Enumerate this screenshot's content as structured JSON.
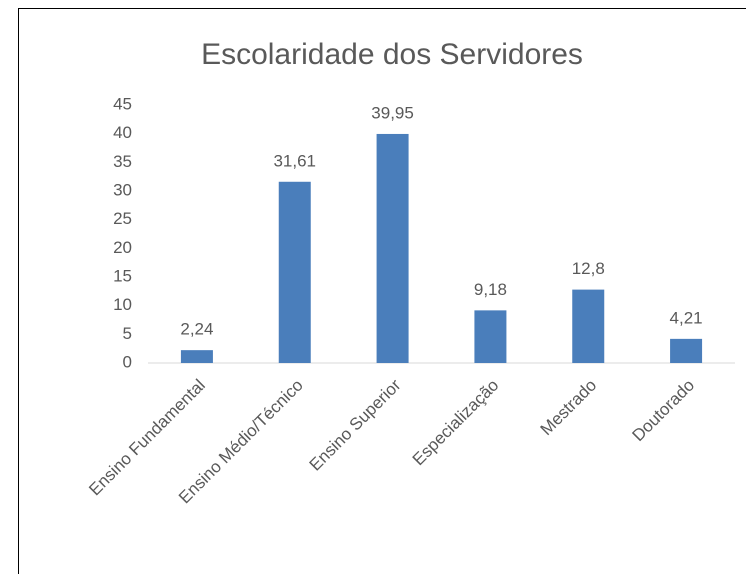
{
  "chart_data": {
    "type": "bar",
    "title": "Escolaridade dos Servidores",
    "categories": [
      "Ensino Fundamental",
      "Ensino Médio/Técnico",
      "Ensino Superior",
      "Especialização",
      "Mestrado",
      "Doutorado"
    ],
    "values": [
      2.24,
      31.61,
      39.95,
      9.18,
      12.8,
      4.21
    ],
    "value_labels": [
      "2,24",
      "31,61",
      "39,95",
      "9,18",
      "12,8",
      "4,21"
    ],
    "color": "#4a7ebb",
    "ylim": [
      0,
      45
    ],
    "yticks": [
      0,
      5,
      10,
      15,
      20,
      25,
      30,
      35,
      40,
      45
    ],
    "grid": false
  }
}
